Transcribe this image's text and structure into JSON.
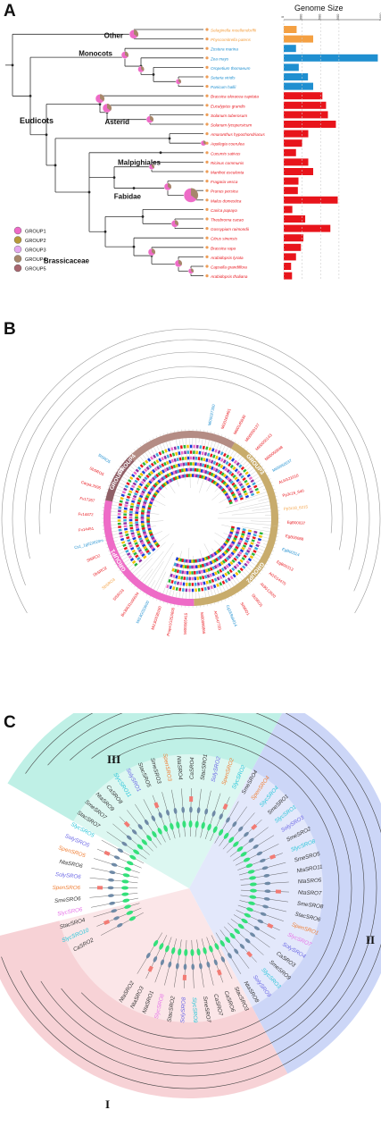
{
  "panelA": {
    "label": "A",
    "genome_size_title": "Genome Size",
    "axis_ticks": [
      "0",
      "300",
      "600",
      "900",
      "2400"
    ],
    "clades": [
      "Other",
      "Monocots",
      "Eudicots",
      "Asterid",
      "Malpighiales",
      "Fabidae",
      "Brassicaceae"
    ],
    "species": [
      {
        "name": "Selaginella moellendorffii",
        "color": "#f4a042",
        "size": 210
      },
      {
        "name": "Physcomitrella patens",
        "color": "#f4a042",
        "size": 480
      },
      {
        "name": "Zostera marina",
        "color": "#1f8fd0",
        "size": 200
      },
      {
        "name": "Zea mays",
        "color": "#1f8fd0",
        "size": 2300
      },
      {
        "name": "Oropetium thomaeum",
        "color": "#1f8fd0",
        "size": 245
      },
      {
        "name": "Setaria viridis",
        "color": "#1f8fd0",
        "size": 395
      },
      {
        "name": "Panicum hallii",
        "color": "#1f8fd0",
        "size": 480
      },
      {
        "name": "Brassica oleracea capitata",
        "color": "#e8141b",
        "size": 630
      },
      {
        "name": "Eucalyptus grandis",
        "color": "#e8141b",
        "size": 690
      },
      {
        "name": "Solanum tuberosum",
        "color": "#e8141b",
        "size": 720
      },
      {
        "name": "Solanum lycopersicum",
        "color": "#e8141b",
        "size": 850
      },
      {
        "name": "Amaranthus hypochondriacus",
        "color": "#e8141b",
        "size": 400
      },
      {
        "name": "Aquilegia coerulea",
        "color": "#e8141b",
        "size": 300
      },
      {
        "name": "Cucumis sativus",
        "color": "#e8141b",
        "size": 200
      },
      {
        "name": "Ricinus communis",
        "color": "#e8141b",
        "size": 400
      },
      {
        "name": "Manihot esculenta",
        "color": "#e8141b",
        "size": 480
      },
      {
        "name": "Fragaria vesca",
        "color": "#e8141b",
        "size": 240
      },
      {
        "name": "Prunus persica",
        "color": "#e8141b",
        "size": 230
      },
      {
        "name": "Malus domestica",
        "color": "#e8141b",
        "size": 880
      },
      {
        "name": "Carica papaya",
        "color": "#e8141b",
        "size": 140
      },
      {
        "name": "Theobroma cacao",
        "color": "#e8141b",
        "size": 350
      },
      {
        "name": "Gossypium raimondii",
        "color": "#e8141b",
        "size": 760
      },
      {
        "name": "Citrus sinensis",
        "color": "#e8141b",
        "size": 320
      },
      {
        "name": "Brassica rapa",
        "color": "#e8141b",
        "size": 280
      },
      {
        "name": "Arabidopsis lyrata",
        "color": "#e8141b",
        "size": 200
      },
      {
        "name": "Capsella grandiflora",
        "color": "#e8141b",
        "size": 120
      },
      {
        "name": "Arabidopsis thaliana",
        "color": "#e8141b",
        "size": 135
      }
    ],
    "legend": [
      {
        "name": "GROUP1",
        "color": "#ee6bc7"
      },
      {
        "name": "GROUP2",
        "color": "#b79a3b"
      },
      {
        "name": "GROUP3",
        "color": "#e5a9ef"
      },
      {
        "name": "GROUP4",
        "color": "#a7876b"
      },
      {
        "name": "GROUP5",
        "color": "#a8666f"
      }
    ]
  },
  "panelB": {
    "label": "B",
    "groups": [
      {
        "name": "GROUP1",
        "color": "#ee6bc7"
      },
      {
        "name": "GROUP2",
        "color": "#c8ac6c"
      },
      {
        "name": "GROUP3",
        "color": "#b59a5a"
      },
      {
        "name": "GROUP4",
        "color": "#b48c84"
      },
      {
        "name": "GROUP5",
        "color": "#8f5f66"
      }
    ],
    "visible_leaf_labels": [
      "Mi00027300",
      "Mi00165491",
      "Mi00145830",
      "Mi00050137",
      "Mi00050143",
      "Mi00050048",
      "Mi00050037",
      "AL6G21010",
      "Pp3c16_640",
      "Pp3c18_6215",
      "EgB00037",
      "EgB00088",
      "EgB00314",
      "EgB00313",
      "At1G14475",
      "At3G12620",
      "SbSRO1",
      "StSRO1",
      "Cg1E9ab014",
      "At3G47720",
      "Mi00096866",
      "Mi00065415",
      "Prupe1G253600",
      "Mi13G038100",
      "Mi13G033600",
      "Bo30631s00034",
      "SlSRO3",
      "SbSRO3",
      "SbSRO2",
      "SlSRO2",
      "Cs1_1g022620m",
      "Fv14451",
      "Fv14472",
      "Fv17267",
      "Carpa.2095",
      "SbSRO5",
      "SlSRO5"
    ]
  },
  "panelC": {
    "label": "C",
    "clade_labels": [
      "I",
      "II",
      "III"
    ],
    "leaf_labels": [
      {
        "t": "CaSRO2",
        "c": "#333333"
      },
      {
        "t": "SlycSRO10",
        "c": "#27c6d9"
      },
      {
        "t": "StacSRO4",
        "c": "#333333"
      },
      {
        "t": "SlycSRO6",
        "c": "#e774e9"
      },
      {
        "t": "SmeSRO6",
        "c": "#333333"
      },
      {
        "t": "SpenSRO6",
        "c": "#f07f35"
      },
      {
        "t": "SolySRO6",
        "c": "#6b67e6"
      },
      {
        "t": "NtaSRO6",
        "c": "#333333"
      },
      {
        "t": "SpenSRO5",
        "c": "#f07f35"
      },
      {
        "t": "SolySRO5",
        "c": "#6b67e6"
      },
      {
        "t": "SlycSRO5",
        "c": "#27c6d9"
      },
      {
        "t": "StacSRO7",
        "c": "#333333"
      },
      {
        "t": "SmeSRO7",
        "c": "#333333"
      },
      {
        "t": "NtaSRO9",
        "c": "#333333"
      },
      {
        "t": "CaSRO8",
        "c": "#333333"
      },
      {
        "t": "SlycSRO11",
        "c": "#27c6d9"
      },
      {
        "t": "SolySRO1",
        "c": "#6b67e6"
      },
      {
        "t": "StacSRO5",
        "c": "#333333"
      },
      {
        "t": "SmeSRO3",
        "c": "#333333"
      },
      {
        "t": "SpenSRO3",
        "c": "#f07f35"
      },
      {
        "t": "NtaSRO4",
        "c": "#333333"
      },
      {
        "t": "CaSRO4",
        "c": "#333333"
      },
      {
        "t": "StacSRO1",
        "c": "#333333"
      },
      {
        "t": "SolySRO2",
        "c": "#6b67e6"
      },
      {
        "t": "SpenSRO2",
        "c": "#f07f35"
      },
      {
        "t": "SlycSRO2",
        "c": "#27c6d9"
      },
      {
        "t": "SmeSRO4",
        "c": "#333333"
      },
      {
        "t": "SpenSRO4",
        "c": "#f07f35"
      },
      {
        "t": "SlycSRO4",
        "c": "#27c6d9"
      },
      {
        "t": "SmeSRO1",
        "c": "#333333"
      },
      {
        "t": "SlycSRO1",
        "c": "#27c6d9"
      },
      {
        "t": "SolySRO3",
        "c": "#6b67e6"
      },
      {
        "t": "SmeSRO2",
        "c": "#333333"
      },
      {
        "t": "SlycSRO8",
        "c": "#27c6d9"
      },
      {
        "t": "SmeSRO5",
        "c": "#333333"
      },
      {
        "t": "NtaSRO11",
        "c": "#333333"
      },
      {
        "t": "NtaSRO5",
        "c": "#333333"
      },
      {
        "t": "NtaSRO7",
        "c": "#333333"
      },
      {
        "t": "SmeSRO8",
        "c": "#333333"
      },
      {
        "t": "StacSRO6",
        "c": "#333333"
      },
      {
        "t": "SpenSRO1",
        "c": "#f07f35"
      },
      {
        "t": "SlycSRO7",
        "c": "#e774e9"
      },
      {
        "t": "SolySRO4",
        "c": "#6b67e6"
      },
      {
        "t": "CaSRO3",
        "c": "#333333"
      },
      {
        "t": "SmeSRO9",
        "c": "#333333"
      },
      {
        "t": "SlycSRO3",
        "c": "#27c6d9"
      },
      {
        "t": "SolySRO9",
        "c": "#6b67e6"
      },
      {
        "t": "NtaSRO8",
        "c": "#333333"
      },
      {
        "t": "StacSRO3",
        "c": "#333333"
      },
      {
        "t": "CaSRO6",
        "c": "#333333"
      },
      {
        "t": "CaSRO7",
        "c": "#333333"
      },
      {
        "t": "SmeSRO7",
        "c": "#333333"
      },
      {
        "t": "SlycSRO9",
        "c": "#27c6d9"
      },
      {
        "t": "SolySRO8",
        "c": "#6b67e6"
      },
      {
        "t": "StacSRO2",
        "c": "#333333"
      },
      {
        "t": "SlycSRO8",
        "c": "#e774e9"
      },
      {
        "t": "NtaSRO1",
        "c": "#333333"
      },
      {
        "t": "NtaSRO3",
        "c": "#333333"
      },
      {
        "t": "NtaSRO2",
        "c": "#333333"
      }
    ]
  }
}
